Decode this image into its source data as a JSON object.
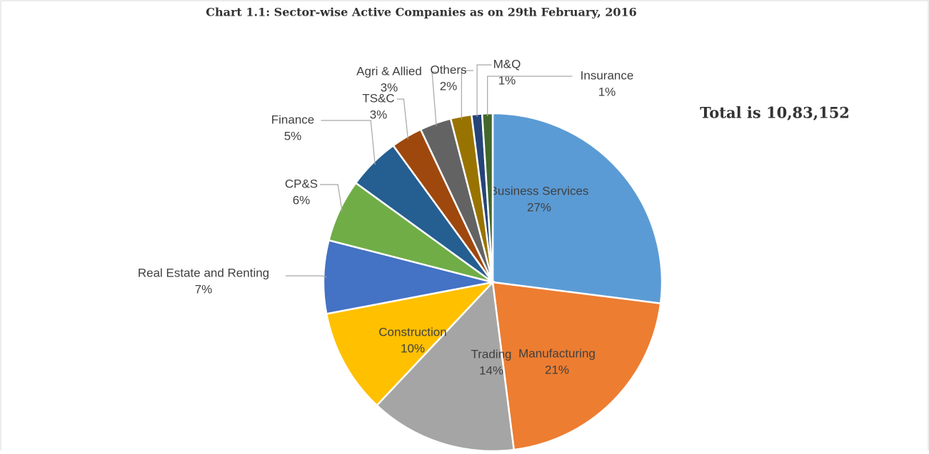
{
  "chart_data": {
    "type": "pie",
    "title": "Chart 1.1: Sector-wise Active Companies as on 29th February, 2016",
    "annotation": "Total is 10,83,152",
    "categories": [
      "Business Services",
      "Manufacturing",
      "Trading",
      "Construction",
      "Real Estate and Renting",
      "CP&S",
      "Finance",
      "TS&C",
      "Agri & Allied",
      "Others",
      "M&Q",
      "Insurance"
    ],
    "values": [
      27,
      21,
      14,
      10,
      7,
      6,
      5,
      3,
      3,
      2,
      1,
      1
    ],
    "value_labels": [
      "27%",
      "21%",
      "14%",
      "10%",
      "7%",
      "6%",
      "5%",
      "3%",
      "3%",
      "2%",
      "1%",
      "1%"
    ],
    "colors": [
      "#5b9bd5",
      "#ed7d31",
      "#a5a5a5",
      "#ffc000",
      "#4472c4",
      "#70ad47",
      "#255e91",
      "#9e480e",
      "#636363",
      "#997300",
      "#264478",
      "#43682b"
    ]
  }
}
